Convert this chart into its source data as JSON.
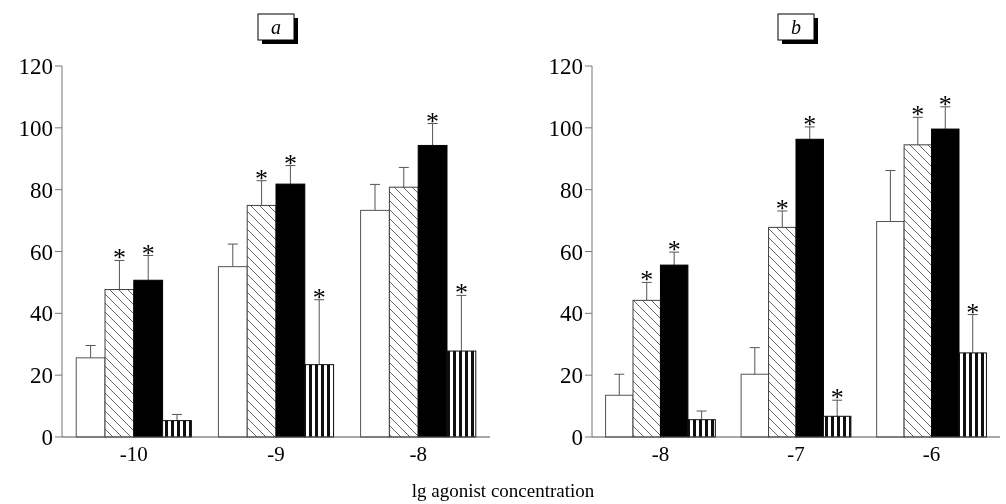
{
  "chart_data": [
    {
      "type": "bar",
      "title": "a",
      "xlabel": "lg agonist concentration",
      "categories": [
        "-10",
        "-9",
        "-8"
      ],
      "ylim": [
        0,
        120
      ],
      "yticks": [
        0,
        20,
        40,
        60,
        80,
        100,
        120
      ],
      "grid": false,
      "series": [
        {
          "color": "#ffffff",
          "values": [
            25.6,
            55.1,
            73.3
          ],
          "errors": [
            4,
            7.3,
            8.4
          ],
          "value_labels": [
            null,
            null,
            null
          ]
        },
        {
          "color": "#404040",
          "values": [
            47.7,
            74.9,
            80.8
          ],
          "errors": [
            9.4,
            8,
            6.4
          ],
          "value_labels": [
            "*",
            "*",
            null
          ]
        },
        {
          "color": "#000000",
          "values": [
            50.7,
            81.8,
            94.3
          ],
          "errors": [
            8,
            6,
            7.1
          ],
          "value_labels": [
            "*",
            "*",
            "*"
          ]
        },
        {
          "color": "#101010",
          "values": [
            5.3,
            23.4,
            27.8
          ],
          "errors": [
            2,
            21,
            18
          ],
          "value_labels": [
            null,
            "*",
            "*"
          ]
        }
      ]
    },
    {
      "type": "bar",
      "title": "b",
      "categories": [
        "-8",
        "-7",
        "-6"
      ],
      "ylim": [
        0,
        120
      ],
      "yticks": [
        0,
        20,
        40,
        60,
        80,
        100,
        120
      ],
      "grid": false,
      "series": [
        {
          "color": "#ffffff",
          "values": [
            13.5,
            20.3,
            69.7
          ],
          "errors": [
            6.8,
            8.6,
            16.5
          ],
          "value_labels": [
            null,
            null,
            null
          ]
        },
        {
          "color": "#404040",
          "values": [
            44.2,
            67.8,
            94.5
          ],
          "errors": [
            5.8,
            5.3,
            8.9
          ],
          "value_labels": [
            "*",
            "*",
            "*"
          ]
        },
        {
          "color": "#000000",
          "values": [
            55.6,
            96.3,
            99.6
          ],
          "errors": [
            4.2,
            4,
            7.2
          ],
          "value_labels": [
            "*",
            "*",
            "*"
          ]
        },
        {
          "color": "#101010",
          "values": [
            5.6,
            6.7,
            27.2
          ],
          "errors": [
            2.8,
            5.2,
            12.4
          ],
          "value_labels": [
            null,
            "*",
            "*"
          ]
        }
      ]
    }
  ]
}
